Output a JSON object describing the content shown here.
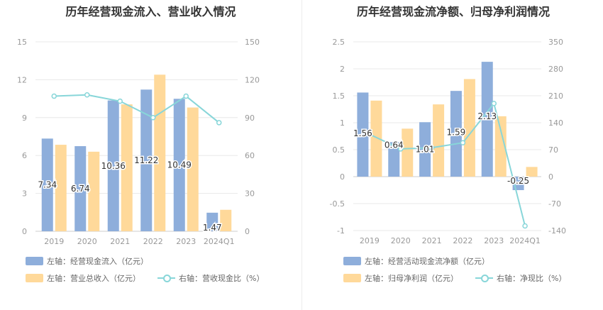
{
  "colors": {
    "bar1": "#8eaedb",
    "bar2": "#ffd99a",
    "line": "#88d6d9",
    "grid": "#e8e8e8",
    "axis_text": "#999999"
  },
  "charts": [
    {
      "title": "历年经营现金流入、营业收入情况"
    },
    {
      "title": "历年经营现金流净额、归母净利润情况"
    }
  ],
  "chart_data": [
    {
      "type": "bar",
      "title": "历年经营现金流入、营业收入情况",
      "categories": [
        "2019",
        "2020",
        "2021",
        "2022",
        "2023",
        "2024Q1"
      ],
      "left_axis": {
        "min": 0,
        "max": 15,
        "ticks": [
          "0",
          "3",
          "6",
          "9",
          "12",
          "15"
        ]
      },
      "right_axis": {
        "min": 0,
        "max": 150,
        "ticks": [
          "0",
          "30",
          "60",
          "90",
          "120",
          "150"
        ]
      },
      "series": [
        {
          "name": "左轴：经营现金流入（亿元）",
          "type": "bar",
          "axis": "left",
          "values": [
            7.34,
            6.74,
            10.36,
            11.22,
            10.49,
            1.47
          ],
          "labels": [
            "7.34",
            "6.74",
            "10.36",
            "11.22",
            "10.49",
            "1.47"
          ]
        },
        {
          "name": "左轴：营业总收入（亿元）",
          "type": "bar",
          "axis": "left",
          "values": [
            6.85,
            6.3,
            10.05,
            12.4,
            9.8,
            1.7
          ]
        },
        {
          "name": "右轴：营收现金比（%）",
          "type": "line",
          "axis": "right",
          "values": [
            107,
            108,
            103,
            90,
            107,
            86
          ]
        }
      ]
    },
    {
      "type": "bar",
      "title": "历年经营现金流净额、归母净利润情况",
      "categories": [
        "2019",
        "2020",
        "2021",
        "2022",
        "2023",
        "2024Q1"
      ],
      "left_axis": {
        "min": -1,
        "max": 2.5,
        "ticks": [
          "-1",
          "-0.5",
          "0",
          "0.5",
          "1",
          "1.5",
          "2",
          "2.5"
        ]
      },
      "right_axis": {
        "min": -140,
        "max": 350,
        "ticks": [
          "-140",
          "-70",
          "0",
          "70",
          "140",
          "210",
          "280",
          "350"
        ]
      },
      "series": [
        {
          "name": "左轴：经营活动现金流净额（亿元）",
          "type": "bar",
          "axis": "left",
          "values": [
            1.56,
            0.64,
            1.01,
            1.59,
            2.13,
            -0.25
          ],
          "labels": [
            "1.56",
            "0.64",
            "1.01",
            "1.59",
            "2.13",
            "-0.25"
          ]
        },
        {
          "name": "左轴：归母净利润（亿元）",
          "type": "bar",
          "axis": "left",
          "values": [
            1.41,
            0.89,
            1.34,
            1.81,
            1.12,
            0.18
          ]
        },
        {
          "name": "右轴：净现比（%）",
          "type": "line",
          "axis": "right",
          "values": [
            110,
            72,
            75,
            88,
            190,
            -128
          ]
        }
      ]
    }
  ]
}
